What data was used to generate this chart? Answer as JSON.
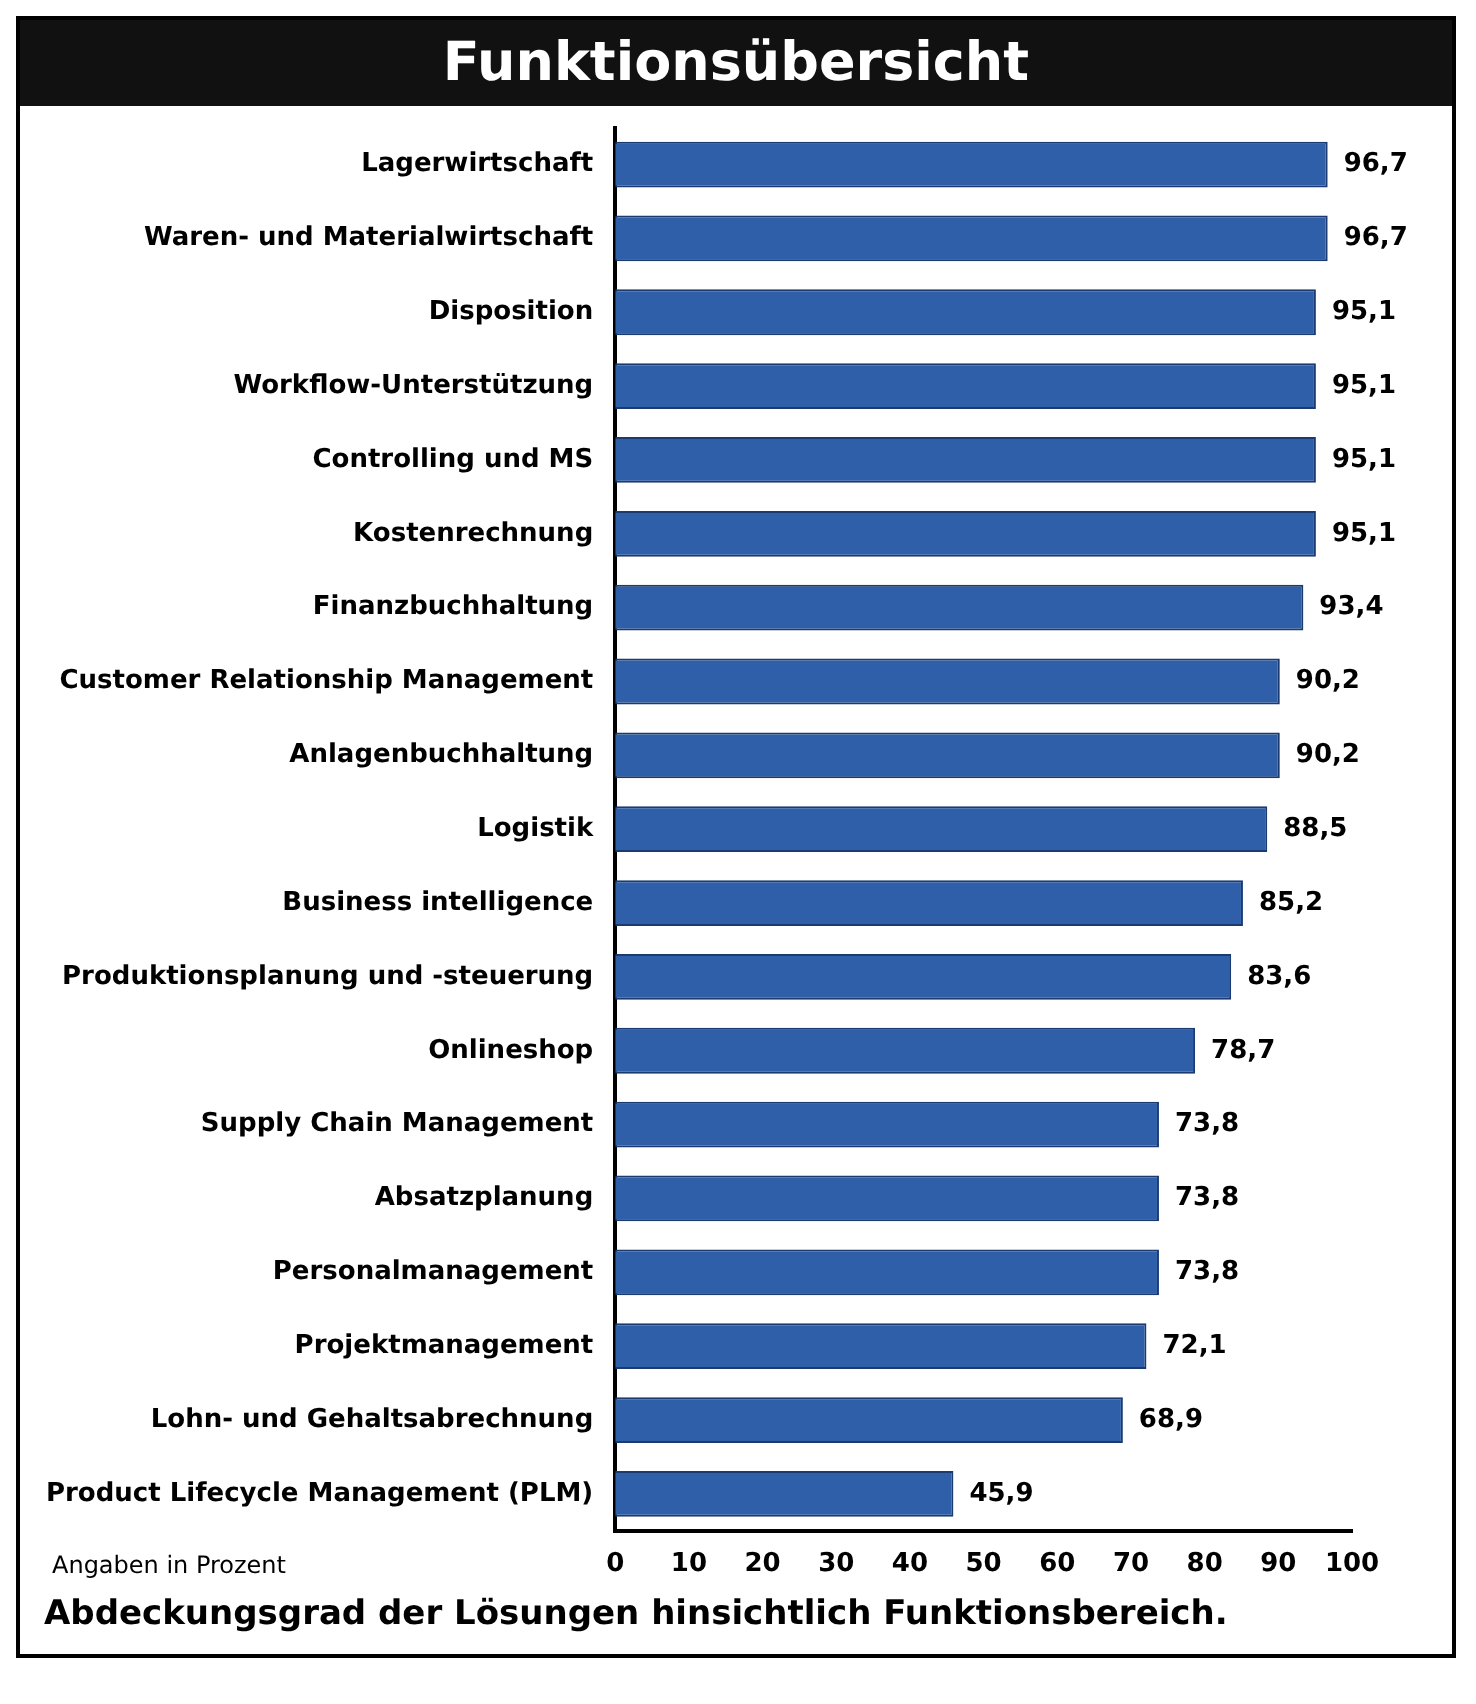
{
  "chart_data": {
    "type": "bar",
    "orientation": "horizontal",
    "title": "Funktionsübersicht",
    "categories": [
      "Lagerwirtschaft",
      "Waren- und Materialwirtschaft",
      "Disposition",
      "Workflow-Unterstützung",
      "Controlling und MS",
      "Kostenrechnung",
      "Finanzbuchhaltung",
      "Customer Relationship Management",
      "Anlagenbuchhaltung",
      "Logistik",
      "Business intelligence",
      "Produktionsplanung und -steuerung",
      "Onlineshop",
      "Supply Chain Management",
      "Absatzplanung",
      "Personalmanagement",
      "Projektmanagement",
      "Lohn- und Gehaltsabrechnung",
      "Product Lifecycle Management (PLM)"
    ],
    "values": [
      96.7,
      96.7,
      95.1,
      95.1,
      95.1,
      95.1,
      93.4,
      90.2,
      90.2,
      88.5,
      85.2,
      83.6,
      78.7,
      73.8,
      73.8,
      73.8,
      72.1,
      68.9,
      45.9
    ],
    "value_labels": [
      "96,7",
      "96,7",
      "95,1",
      "95,1",
      "95,1",
      "95,1",
      "93,4",
      "90,2",
      "90,2",
      "88,5",
      "85,2",
      "83,6",
      "78,7",
      "73,8",
      "73,8",
      "73,8",
      "72,1",
      "68,9",
      "45,9"
    ],
    "color": "#2f5fa8",
    "xlim": [
      0,
      100
    ],
    "xticks": [
      0,
      10,
      20,
      30,
      40,
      50,
      60,
      70,
      80,
      90,
      100
    ],
    "grid": false,
    "legend": false,
    "annotations": [
      "Angaben in Prozent",
      "Abdeckungsgrad der Lösungen hinsichtlich Funktionsbereich."
    ]
  }
}
